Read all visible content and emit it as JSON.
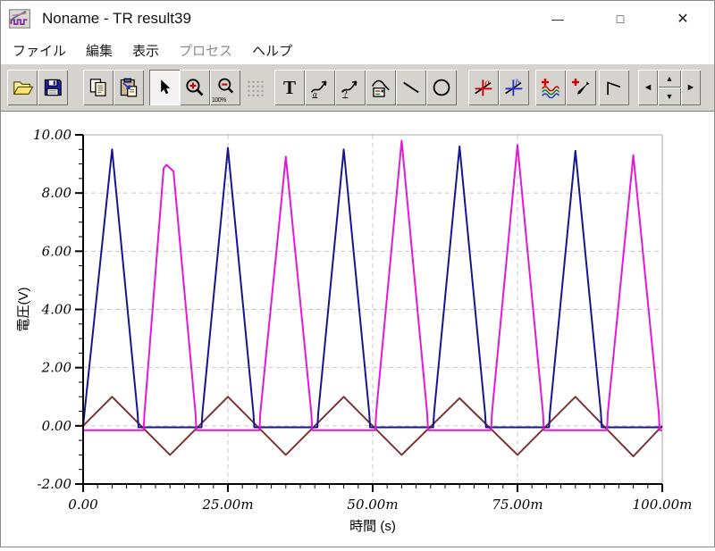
{
  "titlebar": {
    "title": "Noname - TR result39",
    "controls": {
      "minimize": "—",
      "maximize": "□",
      "close": "✕"
    }
  },
  "menubar": {
    "items": [
      {
        "label": "ファイル",
        "enabled": true
      },
      {
        "label": "編集",
        "enabled": true
      },
      {
        "label": "表示",
        "enabled": true
      },
      {
        "label": "プロセス",
        "enabled": false
      },
      {
        "label": "ヘルプ",
        "enabled": true
      }
    ]
  },
  "toolbar": {
    "glyphs": {
      "text_tool": "T",
      "zoom100": "100%",
      "curve_a": "a",
      "curve_q": "?",
      "cursor_a": "a",
      "cursor_b": "b",
      "nav_left": "◄",
      "nav_up": "▲",
      "nav_down": "▼",
      "nav_right": "►"
    }
  },
  "chart_data": {
    "type": "line",
    "title": "",
    "xlabel": "時間 (s)",
    "ylabel": "電圧(V)",
    "xlim_ms": [
      0,
      100
    ],
    "ylim": [
      -2,
      10
    ],
    "x_major_ticks_ms": [
      0,
      25,
      50,
      75,
      100
    ],
    "x_tick_labels": [
      "0.00",
      "25.00m",
      "50.00m",
      "75.00m",
      "100.00m"
    ],
    "x_minor_step_ms": 2.5,
    "y_major_ticks": [
      -2,
      0,
      2,
      4,
      6,
      8,
      10
    ],
    "y_tick_labels": [
      "-2.00",
      "0.00",
      "2.00",
      "4.00",
      "6.00",
      "8.00",
      "10.00"
    ],
    "y_minor_step": 0.5,
    "grid": {
      "h_values": [
        0,
        2,
        4,
        6,
        8
      ],
      "v_values_ms": [
        25,
        50,
        75
      ],
      "style": "dashed",
      "color": "#c8c8c8",
      "frame_color": "#a8a8a8"
    },
    "series": [
      {
        "name": "series-maroon-input-triangle",
        "color": "#7c3434",
        "points_ms_v": [
          [
            0,
            0
          ],
          [
            5,
            1
          ],
          [
            15,
            -1
          ],
          [
            25,
            1
          ],
          [
            35,
            -1
          ],
          [
            45,
            1
          ],
          [
            55,
            -1
          ],
          [
            65,
            0.95
          ],
          [
            75,
            -1
          ],
          [
            85,
            1
          ],
          [
            95,
            -1.05
          ],
          [
            100,
            0
          ]
        ]
      },
      {
        "name": "series-navy-positive-pulses",
        "color": "#16168e",
        "points_ms_v": [
          [
            0,
            0
          ],
          [
            5,
            9.5
          ],
          [
            9.4,
            0.45
          ],
          [
            9.55,
            -0.05
          ],
          [
            20.45,
            -0.05
          ],
          [
            20.6,
            0.45
          ],
          [
            25,
            9.55
          ],
          [
            29.4,
            0.45
          ],
          [
            29.55,
            -0.05
          ],
          [
            40.45,
            -0.05
          ],
          [
            40.6,
            0.45
          ],
          [
            45,
            9.5
          ],
          [
            49.4,
            0.45
          ],
          [
            49.55,
            -0.05
          ],
          [
            60.45,
            -0.05
          ],
          [
            60.6,
            0.45
          ],
          [
            65,
            9.6
          ],
          [
            69.4,
            0.45
          ],
          [
            69.55,
            -0.05
          ],
          [
            80.45,
            -0.05
          ],
          [
            80.6,
            0.45
          ],
          [
            85,
            9.45
          ],
          [
            89.4,
            0.45
          ],
          [
            89.55,
            -0.05
          ],
          [
            100,
            -0.05
          ]
        ]
      },
      {
        "name": "series-magenta-negative-pulses",
        "color": "#e219d6",
        "points_ms_v": [
          [
            0,
            -0.15
          ],
          [
            10.45,
            -0.15
          ],
          [
            10.6,
            0.45
          ],
          [
            13.9,
            8.85
          ],
          [
            14.4,
            8.97
          ],
          [
            15.6,
            8.75
          ],
          [
            19.4,
            0.45
          ],
          [
            19.55,
            -0.15
          ],
          [
            30.45,
            -0.15
          ],
          [
            30.6,
            0.45
          ],
          [
            35,
            9.25
          ],
          [
            39.4,
            0.45
          ],
          [
            39.55,
            -0.15
          ],
          [
            50.45,
            -0.15
          ],
          [
            50.6,
            0.45
          ],
          [
            55,
            9.8
          ],
          [
            59.4,
            0.45
          ],
          [
            59.55,
            -0.15
          ],
          [
            70.45,
            -0.15
          ],
          [
            70.6,
            0.45
          ],
          [
            75,
            9.65
          ],
          [
            79.4,
            0.45
          ],
          [
            79.55,
            -0.15
          ],
          [
            90.45,
            -0.15
          ],
          [
            90.6,
            0.45
          ],
          [
            95,
            9.3
          ],
          [
            99.4,
            0.45
          ],
          [
            99.55,
            -0.15
          ],
          [
            100,
            -0.15
          ]
        ]
      }
    ]
  }
}
